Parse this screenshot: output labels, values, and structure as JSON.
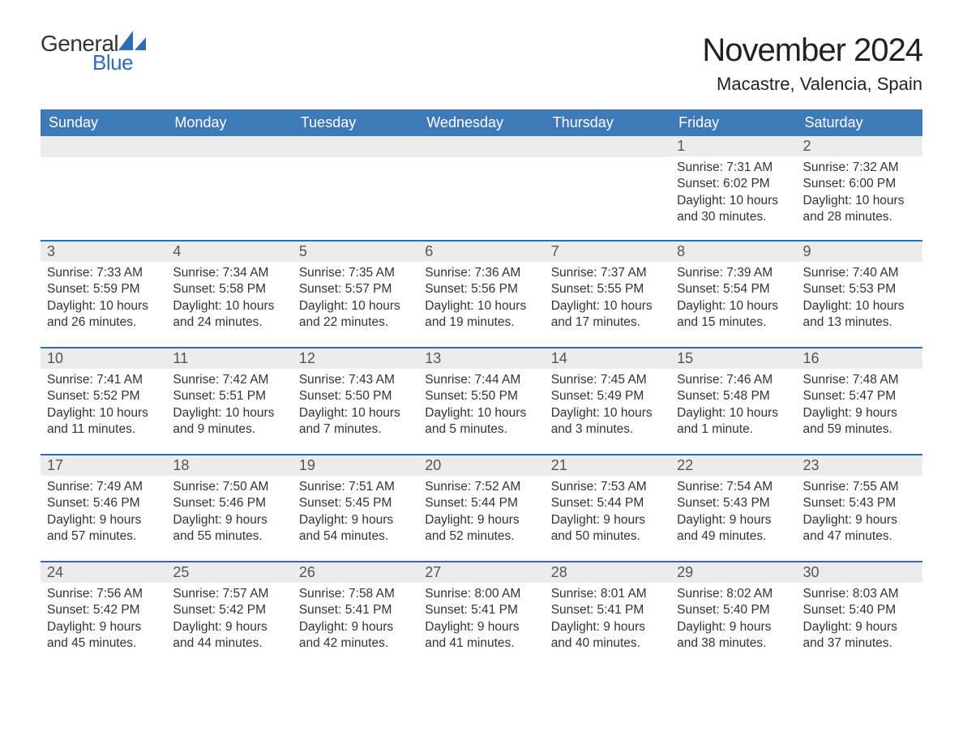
{
  "brand": {
    "word1": "General",
    "word2": "Blue",
    "word1_color": "#333333",
    "word2_color": "#2f6db3",
    "sail_color": "#2f6db3"
  },
  "title": "November 2024",
  "location": "Macastre, Valencia, Spain",
  "colors": {
    "header_bg": "#3f7ab8",
    "header_text": "#ffffff",
    "row_divider": "#2f6db3",
    "daynum_bg": "#ececec",
    "body_text": "#333333",
    "page_bg": "#ffffff"
  },
  "typography": {
    "title_fontsize": 40,
    "location_fontsize": 22,
    "dow_fontsize": 18,
    "daynum_fontsize": 18,
    "body_fontsize": 15.5,
    "font_family": "Arial"
  },
  "days_of_week": [
    "Sunday",
    "Monday",
    "Tuesday",
    "Wednesday",
    "Thursday",
    "Friday",
    "Saturday"
  ],
  "weeks": [
    [
      null,
      null,
      null,
      null,
      null,
      {
        "n": "1",
        "sunrise": "Sunrise: 7:31 AM",
        "sunset": "Sunset: 6:02 PM",
        "daylight": "Daylight: 10 hours and 30 minutes."
      },
      {
        "n": "2",
        "sunrise": "Sunrise: 7:32 AM",
        "sunset": "Sunset: 6:00 PM",
        "daylight": "Daylight: 10 hours and 28 minutes."
      }
    ],
    [
      {
        "n": "3",
        "sunrise": "Sunrise: 7:33 AM",
        "sunset": "Sunset: 5:59 PM",
        "daylight": "Daylight: 10 hours and 26 minutes."
      },
      {
        "n": "4",
        "sunrise": "Sunrise: 7:34 AM",
        "sunset": "Sunset: 5:58 PM",
        "daylight": "Daylight: 10 hours and 24 minutes."
      },
      {
        "n": "5",
        "sunrise": "Sunrise: 7:35 AM",
        "sunset": "Sunset: 5:57 PM",
        "daylight": "Daylight: 10 hours and 22 minutes."
      },
      {
        "n": "6",
        "sunrise": "Sunrise: 7:36 AM",
        "sunset": "Sunset: 5:56 PM",
        "daylight": "Daylight: 10 hours and 19 minutes."
      },
      {
        "n": "7",
        "sunrise": "Sunrise: 7:37 AM",
        "sunset": "Sunset: 5:55 PM",
        "daylight": "Daylight: 10 hours and 17 minutes."
      },
      {
        "n": "8",
        "sunrise": "Sunrise: 7:39 AM",
        "sunset": "Sunset: 5:54 PM",
        "daylight": "Daylight: 10 hours and 15 minutes."
      },
      {
        "n": "9",
        "sunrise": "Sunrise: 7:40 AM",
        "sunset": "Sunset: 5:53 PM",
        "daylight": "Daylight: 10 hours and 13 minutes."
      }
    ],
    [
      {
        "n": "10",
        "sunrise": "Sunrise: 7:41 AM",
        "sunset": "Sunset: 5:52 PM",
        "daylight": "Daylight: 10 hours and 11 minutes."
      },
      {
        "n": "11",
        "sunrise": "Sunrise: 7:42 AM",
        "sunset": "Sunset: 5:51 PM",
        "daylight": "Daylight: 10 hours and 9 minutes."
      },
      {
        "n": "12",
        "sunrise": "Sunrise: 7:43 AM",
        "sunset": "Sunset: 5:50 PM",
        "daylight": "Daylight: 10 hours and 7 minutes."
      },
      {
        "n": "13",
        "sunrise": "Sunrise: 7:44 AM",
        "sunset": "Sunset: 5:50 PM",
        "daylight": "Daylight: 10 hours and 5 minutes."
      },
      {
        "n": "14",
        "sunrise": "Sunrise: 7:45 AM",
        "sunset": "Sunset: 5:49 PM",
        "daylight": "Daylight: 10 hours and 3 minutes."
      },
      {
        "n": "15",
        "sunrise": "Sunrise: 7:46 AM",
        "sunset": "Sunset: 5:48 PM",
        "daylight": "Daylight: 10 hours and 1 minute."
      },
      {
        "n": "16",
        "sunrise": "Sunrise: 7:48 AM",
        "sunset": "Sunset: 5:47 PM",
        "daylight": "Daylight: 9 hours and 59 minutes."
      }
    ],
    [
      {
        "n": "17",
        "sunrise": "Sunrise: 7:49 AM",
        "sunset": "Sunset: 5:46 PM",
        "daylight": "Daylight: 9 hours and 57 minutes."
      },
      {
        "n": "18",
        "sunrise": "Sunrise: 7:50 AM",
        "sunset": "Sunset: 5:46 PM",
        "daylight": "Daylight: 9 hours and 55 minutes."
      },
      {
        "n": "19",
        "sunrise": "Sunrise: 7:51 AM",
        "sunset": "Sunset: 5:45 PM",
        "daylight": "Daylight: 9 hours and 54 minutes."
      },
      {
        "n": "20",
        "sunrise": "Sunrise: 7:52 AM",
        "sunset": "Sunset: 5:44 PM",
        "daylight": "Daylight: 9 hours and 52 minutes."
      },
      {
        "n": "21",
        "sunrise": "Sunrise: 7:53 AM",
        "sunset": "Sunset: 5:44 PM",
        "daylight": "Daylight: 9 hours and 50 minutes."
      },
      {
        "n": "22",
        "sunrise": "Sunrise: 7:54 AM",
        "sunset": "Sunset: 5:43 PM",
        "daylight": "Daylight: 9 hours and 49 minutes."
      },
      {
        "n": "23",
        "sunrise": "Sunrise: 7:55 AM",
        "sunset": "Sunset: 5:43 PM",
        "daylight": "Daylight: 9 hours and 47 minutes."
      }
    ],
    [
      {
        "n": "24",
        "sunrise": "Sunrise: 7:56 AM",
        "sunset": "Sunset: 5:42 PM",
        "daylight": "Daylight: 9 hours and 45 minutes."
      },
      {
        "n": "25",
        "sunrise": "Sunrise: 7:57 AM",
        "sunset": "Sunset: 5:42 PM",
        "daylight": "Daylight: 9 hours and 44 minutes."
      },
      {
        "n": "26",
        "sunrise": "Sunrise: 7:58 AM",
        "sunset": "Sunset: 5:41 PM",
        "daylight": "Daylight: 9 hours and 42 minutes."
      },
      {
        "n": "27",
        "sunrise": "Sunrise: 8:00 AM",
        "sunset": "Sunset: 5:41 PM",
        "daylight": "Daylight: 9 hours and 41 minutes."
      },
      {
        "n": "28",
        "sunrise": "Sunrise: 8:01 AM",
        "sunset": "Sunset: 5:41 PM",
        "daylight": "Daylight: 9 hours and 40 minutes."
      },
      {
        "n": "29",
        "sunrise": "Sunrise: 8:02 AM",
        "sunset": "Sunset: 5:40 PM",
        "daylight": "Daylight: 9 hours and 38 minutes."
      },
      {
        "n": "30",
        "sunrise": "Sunrise: 8:03 AM",
        "sunset": "Sunset: 5:40 PM",
        "daylight": "Daylight: 9 hours and 37 minutes."
      }
    ]
  ]
}
